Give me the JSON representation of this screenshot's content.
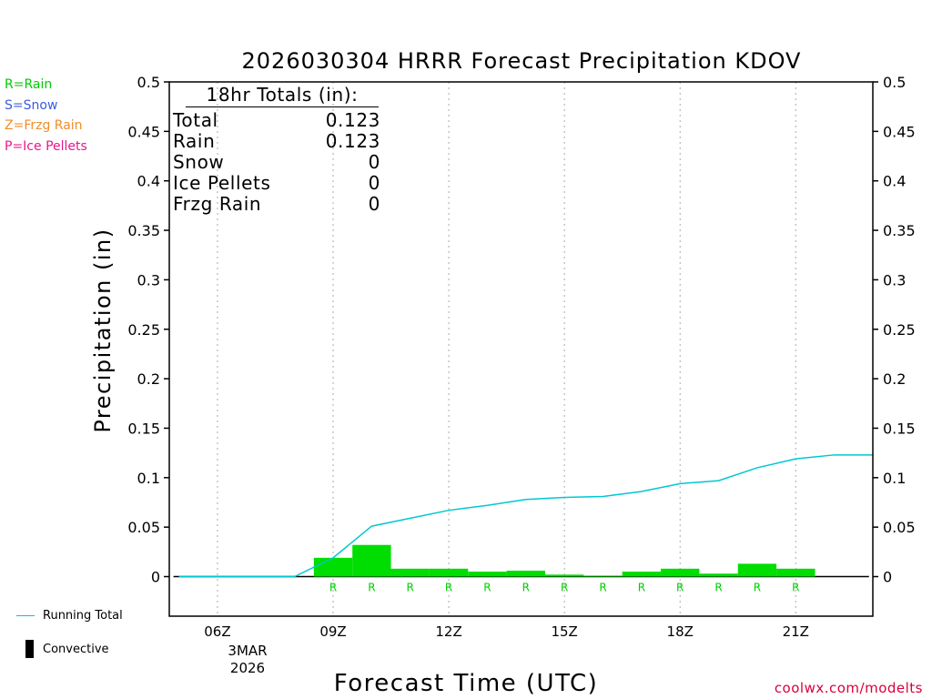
{
  "chart_data": {
    "type": "bar",
    "title": "2026030304 HRRR Forecast Precipitation KDOV",
    "xlabel": "Forecast Time (UTC)",
    "ylabel": "Precipitation (in)",
    "ylim": [
      -0.04,
      0.5
    ],
    "xlim": [
      4.75,
      23.0
    ],
    "yticks": [
      0,
      0.05,
      0.1,
      0.15,
      0.2,
      0.25,
      0.3,
      0.35,
      0.4,
      0.45,
      0.5
    ],
    "ytick_labels": [
      "0",
      "0.05",
      "0.1",
      "0.15",
      "0.2",
      "0.25",
      "0.3",
      "0.35",
      "0.4",
      "0.45",
      "0.5"
    ],
    "xticks": [
      6,
      9,
      12,
      15,
      18,
      21
    ],
    "xtick_labels": [
      "06Z",
      "09Z",
      "12Z",
      "15Z",
      "18Z",
      "21Z"
    ],
    "date_label_line1": "3MAR",
    "date_label_line2": "2026",
    "bar_hours": [
      9,
      10,
      11,
      12,
      13,
      14,
      15,
      16,
      17,
      18,
      19,
      20,
      21
    ],
    "bars": [
      0.019,
      0.032,
      0.008,
      0.008,
      0.005,
      0.006,
      0.002,
      0.001,
      0.005,
      0.008,
      0.003,
      0.013,
      0.008
    ],
    "bar_type_labels": [
      "R",
      "R",
      "R",
      "R",
      "R",
      "R",
      "R",
      "R",
      "R",
      "R",
      "R",
      "R",
      "R"
    ],
    "running_total": {
      "name": "Running Total",
      "x": [
        5,
        6,
        7,
        8,
        9,
        10,
        11,
        12,
        13,
        14,
        15,
        16,
        17,
        18,
        19,
        20,
        21,
        22,
        23
      ],
      "values": [
        0,
        0,
        0,
        0,
        0.019,
        0.051,
        0.059,
        0.067,
        0.072,
        0.078,
        0.08,
        0.081,
        0.086,
        0.094,
        0.097,
        0.11,
        0.119,
        0.123,
        0.123
      ]
    },
    "series_colors": {
      "bar": "#00dd00",
      "running_total": "#00c8d0",
      "rain_label": "#00cc00"
    }
  },
  "legend": {
    "rain": "R=Rain",
    "snow": "S=Snow",
    "frzg_rain": "Z=Frzg Rain",
    "ice_pellets": "P=Ice Pellets",
    "colors": {
      "rain": "#00cc00",
      "snow": "#3a5ce0",
      "frzg_rain": "#f08c28",
      "ice_pellets": "#e8188c"
    }
  },
  "totals": {
    "title": "18hr Totals (in):",
    "rows": [
      {
        "label": "Total",
        "value": "0.123"
      },
      {
        "label": "Rain",
        "value": "0.123"
      },
      {
        "label": "Snow",
        "value": "0"
      },
      {
        "label": "Ice Pellets",
        "value": "0"
      },
      {
        "label": "Frzg Rain",
        "value": "0"
      }
    ]
  },
  "bottom_legend": {
    "running_total": "Running Total",
    "convective": "Convective"
  },
  "credit": "coolwx.com/modelts"
}
